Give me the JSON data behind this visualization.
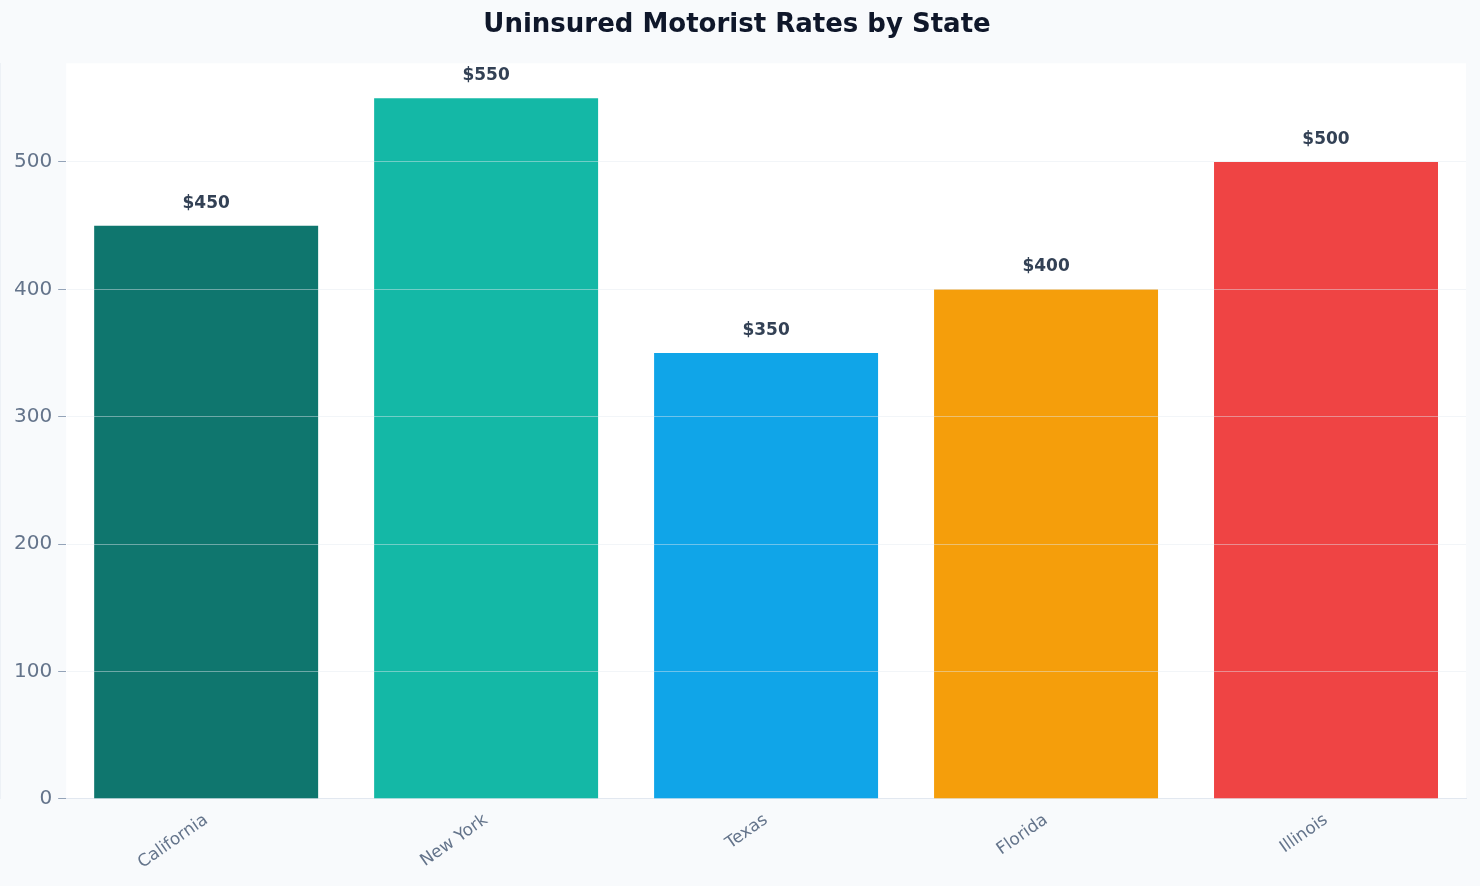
{
  "chart_data": {
    "type": "bar",
    "title": "Uninsured Motorist Rates by State",
    "categories": [
      "California",
      "New York",
      "Texas",
      "Florida",
      "Illinois"
    ],
    "values": [
      450,
      550,
      350,
      400,
      500
    ],
    "colors": [
      "#0f766e",
      "#14b8a6",
      "#10a5e8",
      "#f59e0b",
      "#ef4444"
    ],
    "value_labels": [
      "$450",
      "$550",
      "$350",
      "$400",
      "$500"
    ],
    "ylim": [
      0,
      577.5
    ],
    "yticks": [
      0,
      100,
      200,
      300,
      400,
      500
    ],
    "grid": "y",
    "legend": false
  }
}
